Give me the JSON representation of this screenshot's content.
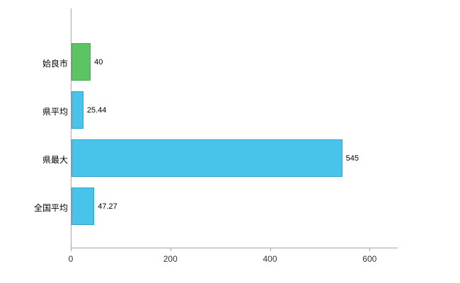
{
  "chart_data": {
    "type": "bar",
    "orientation": "horizontal",
    "title": "",
    "xlabel": "",
    "ylabel": "",
    "categories": [
      "姶良市",
      "県平均",
      "県最大",
      "全国平均"
    ],
    "values": [
      40,
      25.44,
      545,
      47.27
    ],
    "value_labels": [
      "40",
      "25.44",
      "545",
      "47.27"
    ],
    "bar_colors": [
      "#5cc463",
      "#49c3ea",
      "#49c3ea",
      "#49c3ea"
    ],
    "bar_border_colors": [
      "#43a64c",
      "#2da4cc",
      "#2da4cc",
      "#2da4cc"
    ],
    "x_ticks": [
      0,
      200,
      400,
      600
    ],
    "xlim": [
      0,
      655
    ],
    "grid": false,
    "legend": "none",
    "axis_color": "#a6a6a6"
  }
}
